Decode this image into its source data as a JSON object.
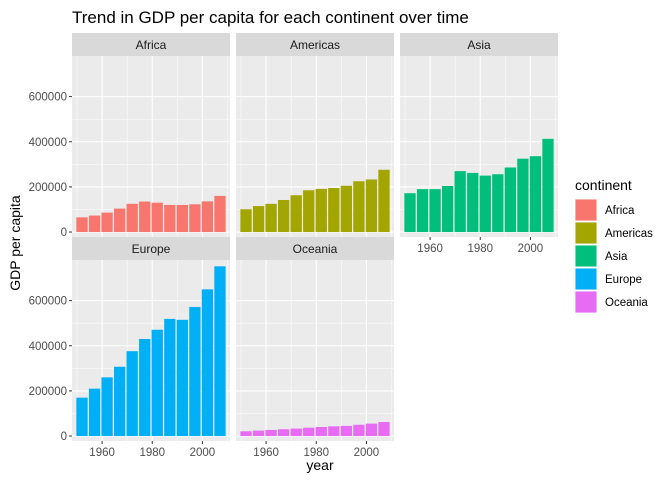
{
  "chart_data": {
    "type": "bar",
    "title": "Trend in GDP per capita for each continent over time",
    "xlabel": "year",
    "ylabel": "GDP per capita",
    "x": [
      1952,
      1957,
      1962,
      1967,
      1972,
      1977,
      1982,
      1987,
      1992,
      1997,
      2002,
      2007
    ],
    "xticks": [
      1960,
      1980,
      2000
    ],
    "yticks": [
      0,
      200000,
      400000,
      600000
    ],
    "ytick_labels": [
      "0",
      "200000",
      "400000",
      "600000"
    ],
    "xlim": [
      1948,
      2011
    ],
    "ylim": [
      -22000,
      780000
    ],
    "legend_title": "continent",
    "legend_position": "right",
    "grid": true,
    "series": [
      {
        "name": "Africa",
        "color": "#F8766D",
        "values": [
          65000,
          73000,
          86000,
          104000,
          125000,
          135000,
          130000,
          120000,
          120000,
          123000,
          136000,
          160000
        ]
      },
      {
        "name": "Americas",
        "color": "#A3A500",
        "values": [
          101000,
          115000,
          125000,
          142000,
          163000,
          185000,
          191000,
          195000,
          205000,
          225000,
          233000,
          276000
        ]
      },
      {
        "name": "Asia",
        "color": "#00BF7D",
        "values": [
          172000,
          190000,
          190000,
          204000,
          270000,
          262000,
          250000,
          256000,
          286000,
          325000,
          336000,
          413000
        ]
      },
      {
        "name": "Europe",
        "color": "#00B0F6",
        "values": [
          170000,
          210000,
          260000,
          307000,
          376000,
          430000,
          471000,
          519000,
          515000,
          572000,
          650000,
          752000
        ]
      },
      {
        "name": "Oceania",
        "color": "#E76BF3",
        "values": [
          21000,
          24000,
          27000,
          30000,
          33000,
          37000,
          40000,
          43000,
          45000,
          50000,
          55000,
          62000
        ]
      }
    ]
  }
}
